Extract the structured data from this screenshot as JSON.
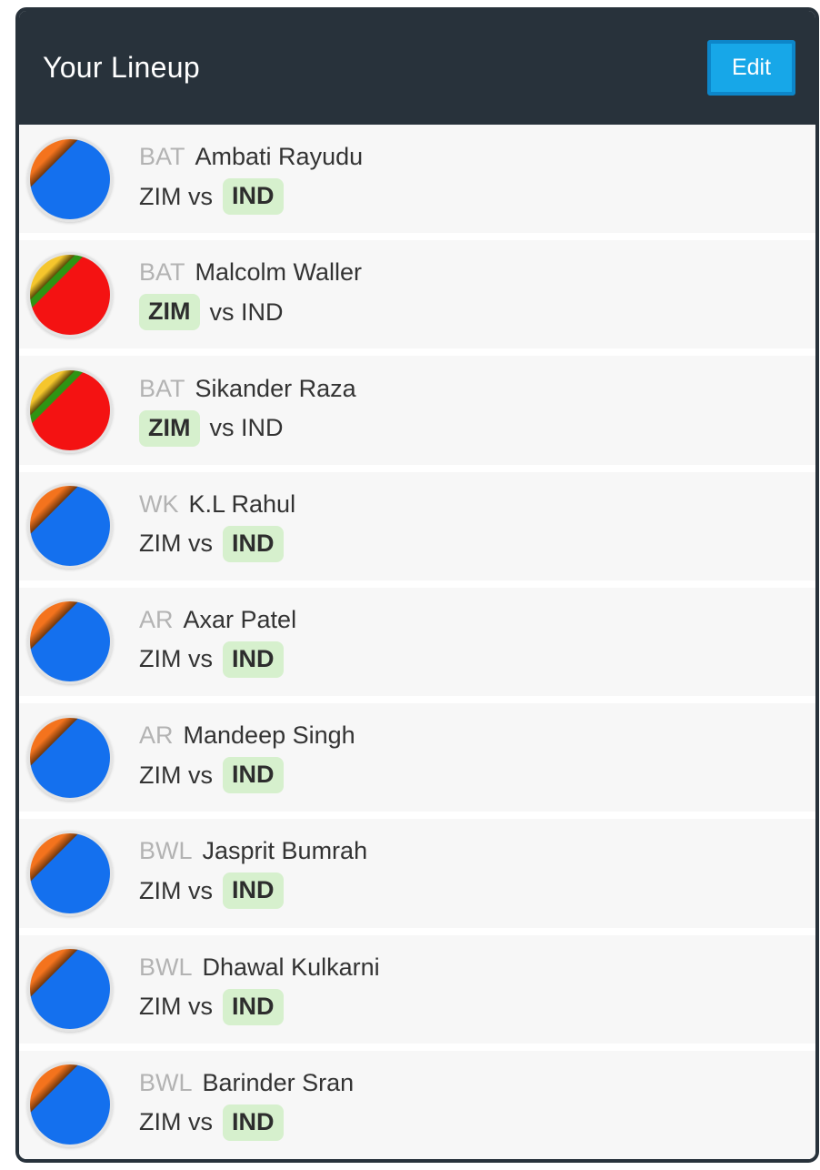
{
  "header": {
    "title": "Your Lineup",
    "edit_label": "Edit"
  },
  "colors": {
    "frame": "#28323b",
    "header-bg": "#28323b",
    "row-bg": "#f7f7f7",
    "accent": "#17a7e8",
    "edit-border": "#0d86c9",
    "badge-bg": "#d6f0cd",
    "role-gray": "#b3b3b3",
    "text-dark": "#333333",
    "ring": "#e3e3e3"
  },
  "teams": {
    "IND": {
      "primary": "#1470ee",
      "secondary": "#f4731d",
      "shadow": "#73390d",
      "stripe": ""
    },
    "ZIM": {
      "primary": "#f41212",
      "secondary": "#f5c62d",
      "shadow": "#5e4c08",
      "stripe": "#2f9413"
    }
  },
  "players": [
    {
      "role": "BAT",
      "name": "Ambati Rayudu",
      "team": "IND",
      "match": {
        "before": "ZIM vs",
        "badge": "IND",
        "after": ""
      }
    },
    {
      "role": "BAT",
      "name": "Malcolm Waller",
      "team": "ZIM",
      "match": {
        "before": "",
        "badge": "ZIM",
        "after": "vs IND"
      }
    },
    {
      "role": "BAT",
      "name": "Sikander Raza",
      "team": "ZIM",
      "match": {
        "before": "",
        "badge": "ZIM",
        "after": "vs IND"
      }
    },
    {
      "role": "WK",
      "name": "K.L Rahul",
      "team": "IND",
      "match": {
        "before": "ZIM vs",
        "badge": "IND",
        "after": ""
      }
    },
    {
      "role": "AR",
      "name": "Axar Patel",
      "team": "IND",
      "match": {
        "before": "ZIM vs",
        "badge": "IND",
        "after": ""
      }
    },
    {
      "role": "AR",
      "name": "Mandeep Singh",
      "team": "IND",
      "match": {
        "before": "ZIM vs",
        "badge": "IND",
        "after": ""
      }
    },
    {
      "role": "BWL",
      "name": "Jasprit Bumrah",
      "team": "IND",
      "match": {
        "before": "ZIM vs",
        "badge": "IND",
        "after": ""
      }
    },
    {
      "role": "BWL",
      "name": "Dhawal Kulkarni",
      "team": "IND",
      "match": {
        "before": "ZIM vs",
        "badge": "IND",
        "after": ""
      }
    },
    {
      "role": "BWL",
      "name": "Barinder Sran",
      "team": "IND",
      "match": {
        "before": "ZIM vs",
        "badge": "IND",
        "after": ""
      }
    }
  ]
}
